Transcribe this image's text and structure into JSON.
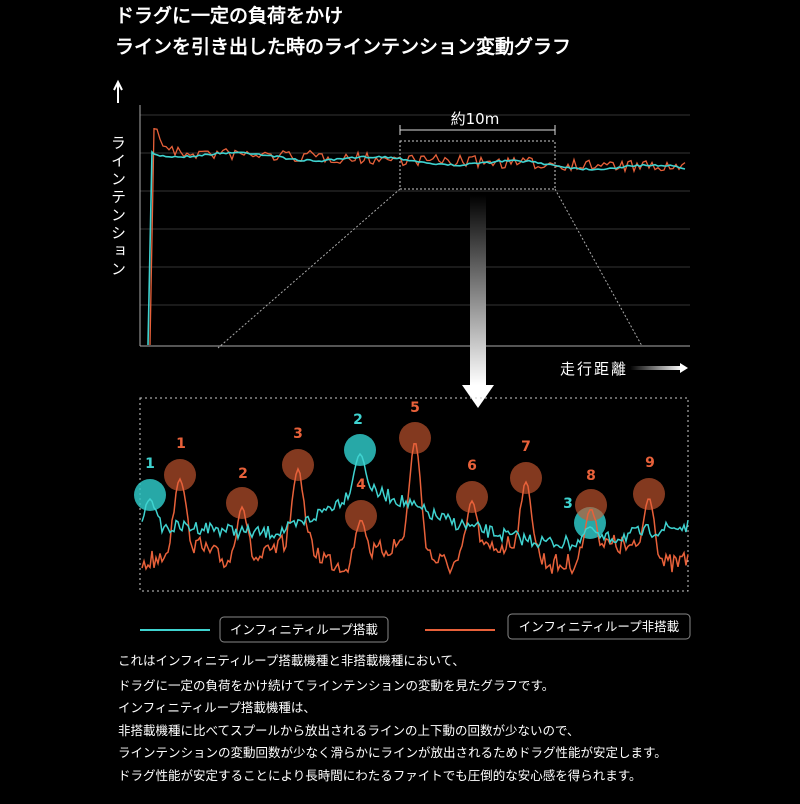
{
  "header": {
    "title_lines": [
      "ドラグに一定の負荷をかけ",
      "ラインを引き出した時のラインテンション変動グラフ"
    ]
  },
  "top_chart": {
    "y_axis_label": "ラインテンション",
    "x_axis_label": "走行距離",
    "span_label": "約10m"
  },
  "detail": {
    "markers": [
      {
        "label": "1",
        "series": "with"
      },
      {
        "label": "1",
        "series": "without"
      },
      {
        "label": "2",
        "series": "without"
      },
      {
        "label": "3",
        "series": "without"
      },
      {
        "label": "2",
        "series": "with"
      },
      {
        "label": "4",
        "series": "without"
      },
      {
        "label": "5",
        "series": "without"
      },
      {
        "label": "6",
        "series": "without"
      },
      {
        "label": "7",
        "series": "without"
      },
      {
        "label": "3",
        "series": "with"
      },
      {
        "label": "8",
        "series": "without"
      },
      {
        "label": "9",
        "series": "without"
      }
    ]
  },
  "legend": {
    "with": "インフィニティループ搭載",
    "without": "インフィニティループ非搭載"
  },
  "description": [
    "これはインフィニティループ搭載機種と非搭載機種において、",
    "ドラグに一定の負荷をかけ続けてラインテンションの変動を見たグラフです。",
    "インフィニティループ搭載機種は、",
    "非搭載機種に比べてスプールから放出されるラインの上下動の回数が少ないので、",
    "ラインテンションの変動回数が少なく滑らかにラインが放出されるためドラグ性能が安定します。",
    "ドラグ性能が安定することにより長時間にわたるファイトでも圧倒的な安心感を得られます。"
  ]
}
